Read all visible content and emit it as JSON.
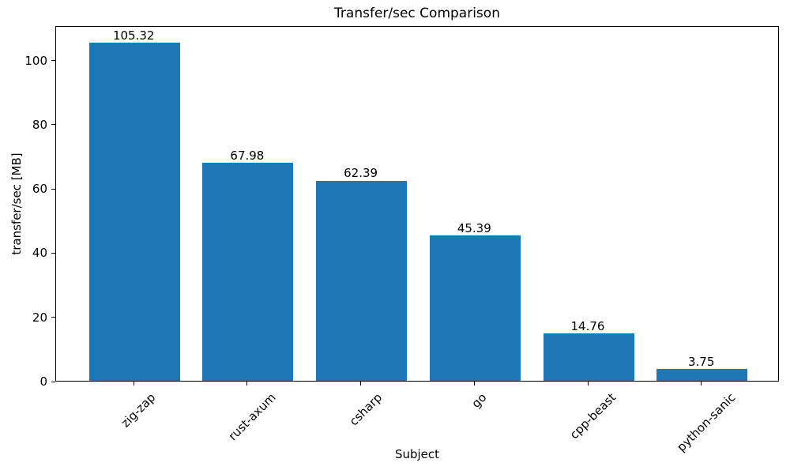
{
  "chart_data": {
    "type": "bar",
    "title": "Transfer/sec Comparison",
    "xlabel": "Subject",
    "ylabel": "transfer/sec [MB]",
    "categories": [
      "zig-zap",
      "rust-axum",
      "csharp",
      "go",
      "cpp-beast",
      "python-sanic"
    ],
    "values": [
      105.32,
      67.98,
      62.39,
      45.39,
      14.76,
      3.75
    ],
    "value_labels": [
      "105.32",
      "67.98",
      "62.39",
      "45.39",
      "14.76",
      "3.75"
    ],
    "yticks": [
      0,
      20,
      40,
      60,
      80,
      100
    ],
    "ylim": [
      0,
      110.75
    ],
    "grid": false,
    "legend": null,
    "bar_color": "#1f77b4",
    "text_color": "#000000"
  }
}
